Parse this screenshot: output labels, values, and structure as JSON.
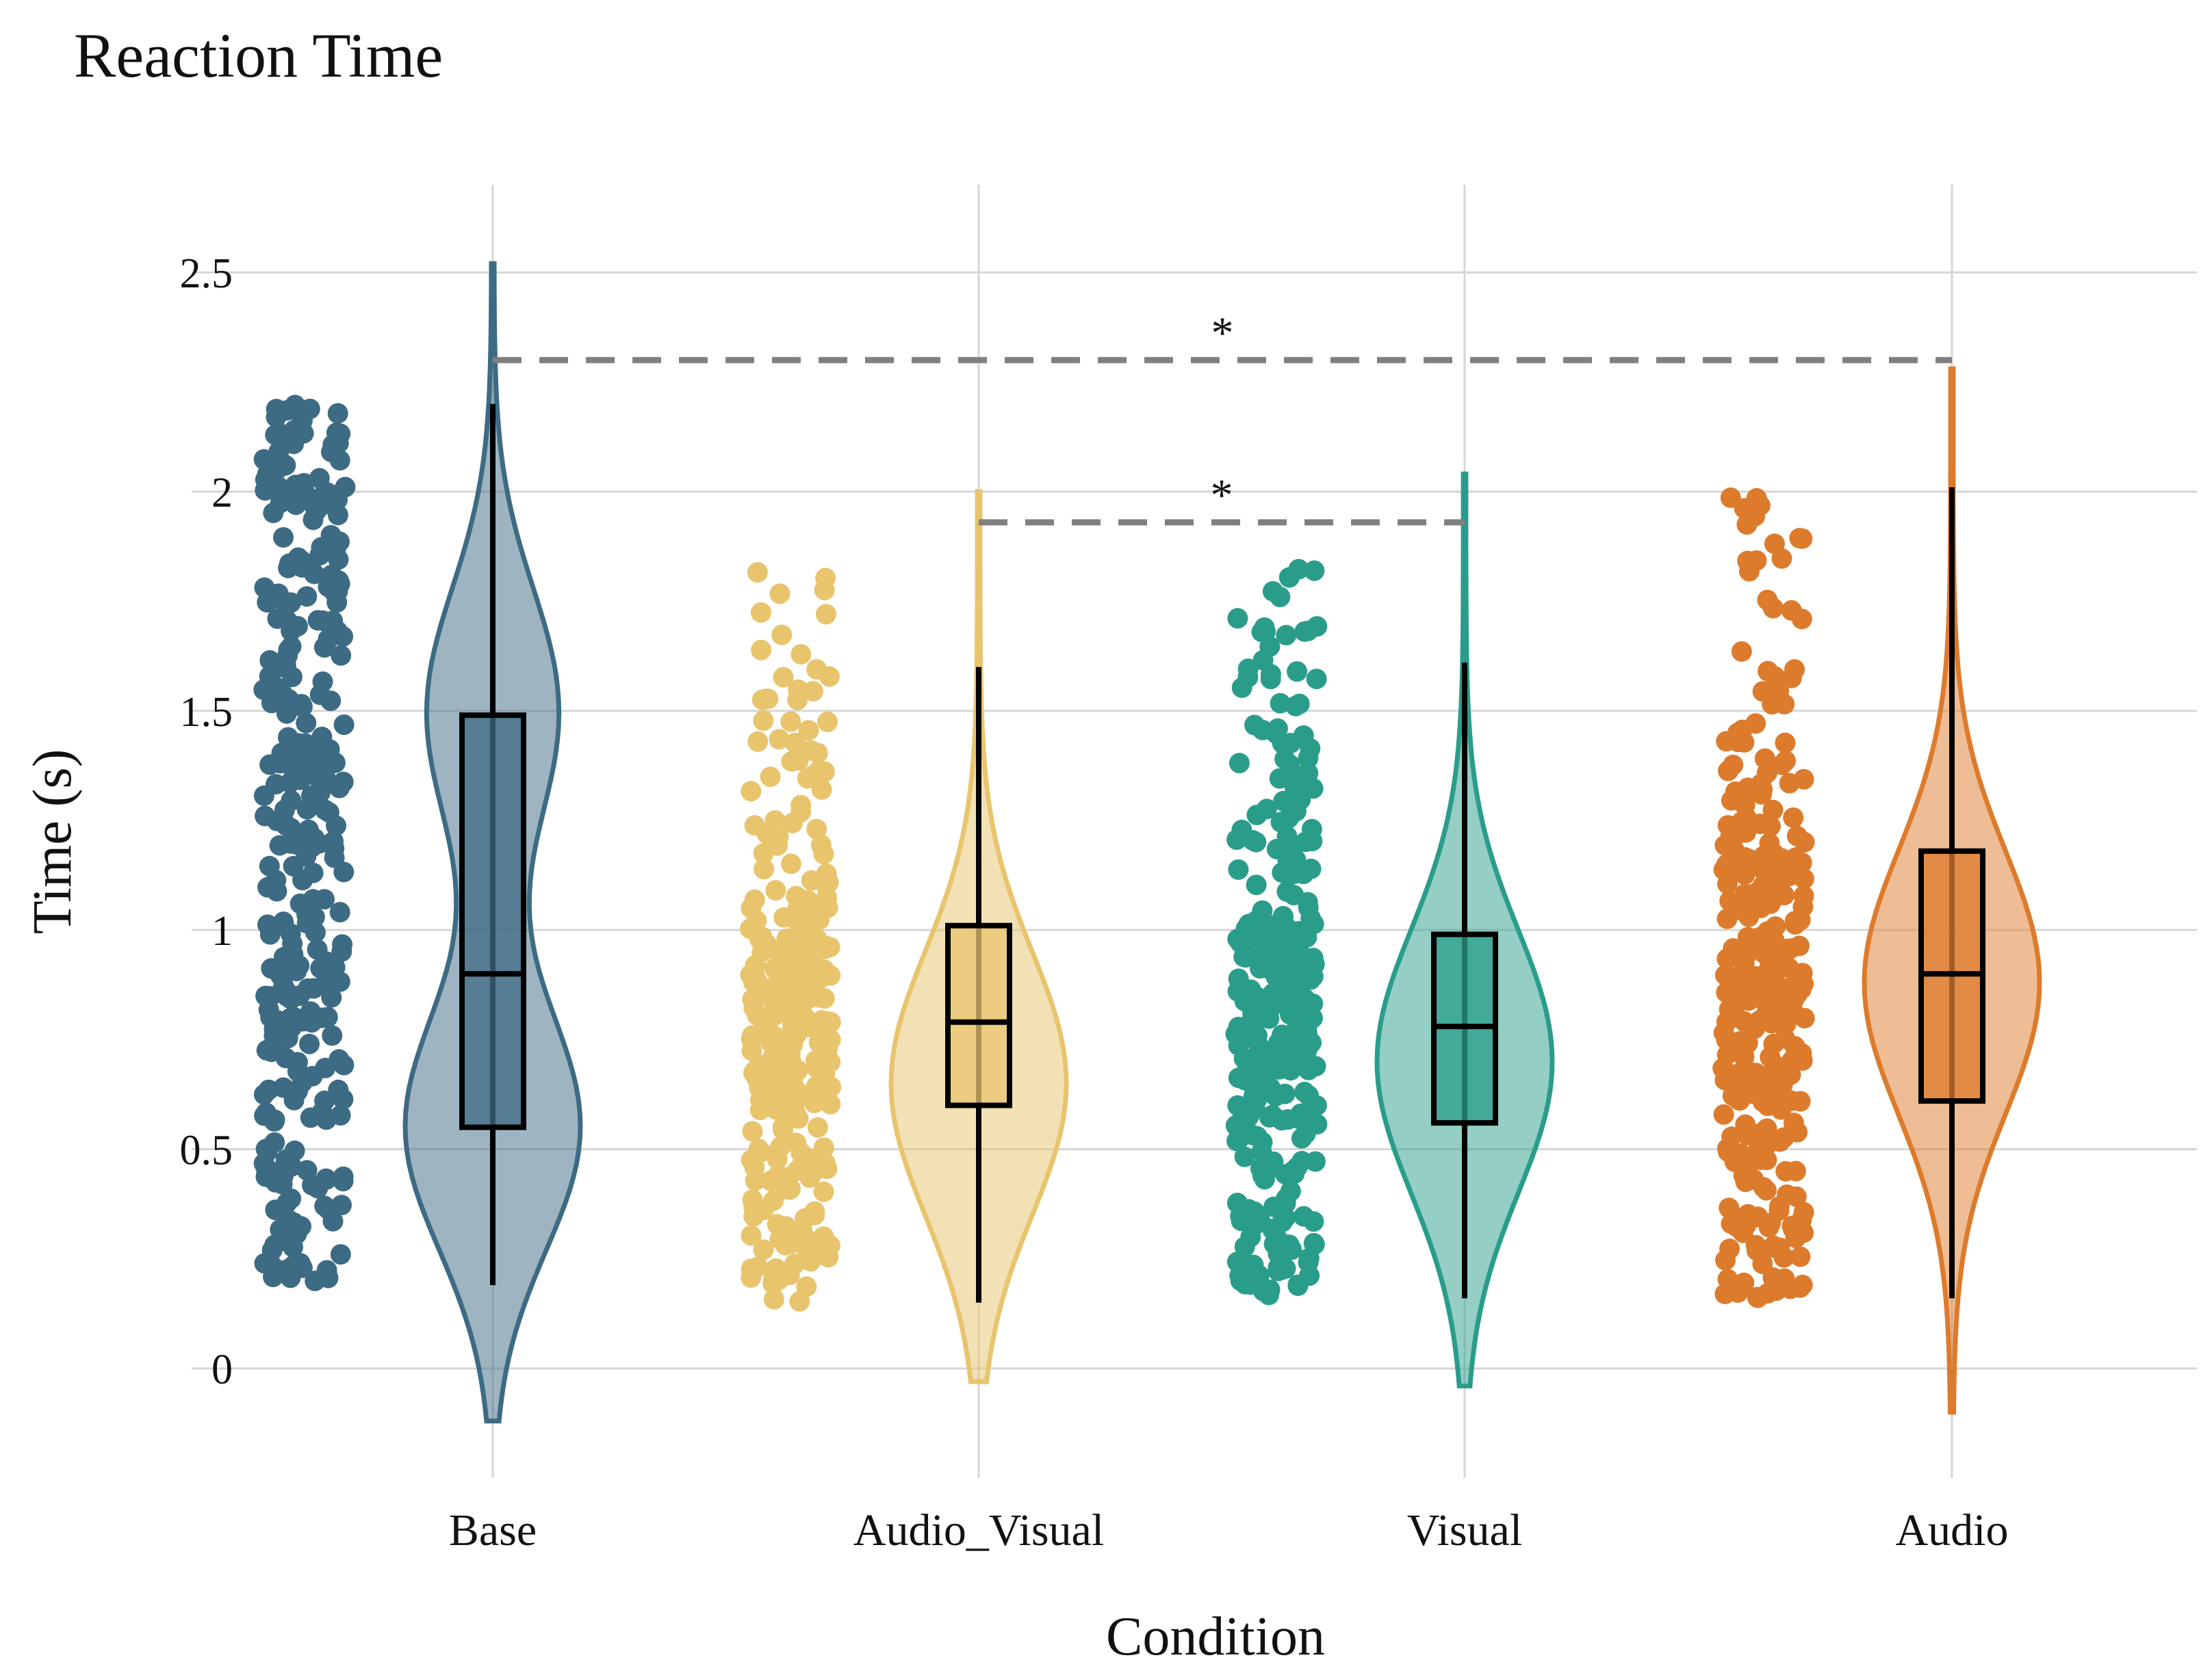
{
  "chart_data": {
    "type": "violin-box-jitter",
    "title": "Reaction Time",
    "xlabel": "Condition",
    "ylabel": "Time (s)",
    "ylim": [
      -0.25,
      2.7
    ],
    "yticks": [
      0,
      0.5,
      1,
      1.5,
      2,
      2.5
    ],
    "ytick_labels": [
      "0",
      "0.5",
      "1",
      "1.5",
      "2",
      "2.5"
    ],
    "grid": true,
    "categories": [
      "Base",
      "Audio_Visual",
      "Visual",
      "Audio"
    ],
    "series": [
      {
        "name": "Base",
        "color": "#3d6b83",
        "violin_min": -0.12,
        "violin_max": 2.52,
        "density_peaks": [
          0.55,
          1.5
        ],
        "box": {
          "whisker_low": 0.19,
          "q1": 0.55,
          "median": 0.9,
          "q3": 1.49,
          "whisker_high": 2.2
        },
        "points_range": [
          0.19,
          2.2
        ]
      },
      {
        "name": "Audio_Visual",
        "color": "#e8c46d",
        "violin_min": -0.03,
        "violin_max": 2.0,
        "density_peaks": [
          0.65
        ],
        "box": {
          "whisker_low": 0.15,
          "q1": 0.6,
          "median": 0.79,
          "q3": 1.01,
          "whisker_high": 1.6
        },
        "points_range": [
          0.15,
          1.83
        ]
      },
      {
        "name": "Visual",
        "color": "#2a9d8a",
        "violin_min": -0.04,
        "violin_max": 2.04,
        "density_peaks": [
          0.7
        ],
        "box": {
          "whisker_low": 0.16,
          "q1": 0.56,
          "median": 0.78,
          "q3": 0.99,
          "whisker_high": 1.61
        },
        "points_range": [
          0.16,
          1.83
        ]
      },
      {
        "name": "Audio",
        "color": "#dd7b2c",
        "violin_min": -0.1,
        "violin_max": 2.28,
        "density_peaks": [
          0.88
        ],
        "box": {
          "whisker_low": 0.16,
          "q1": 0.61,
          "median": 0.9,
          "q3": 1.18,
          "whisker_high": 2.01
        },
        "points_range": [
          0.16,
          2.01
        ]
      }
    ],
    "significance": [
      {
        "from": "Base",
        "to": "Audio",
        "y": 2.3,
        "label": "*"
      },
      {
        "from": "Audio_Visual",
        "to": "Visual",
        "y": 1.93,
        "label": "*"
      }
    ]
  }
}
